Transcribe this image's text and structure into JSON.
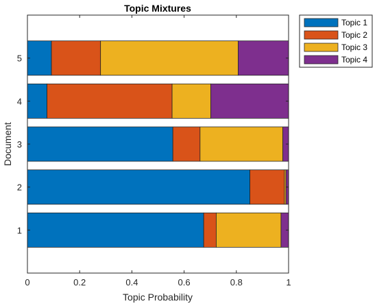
{
  "chart_data": {
    "type": "bar",
    "orientation": "horizontal",
    "stacked": true,
    "title": "Topic Mixtures",
    "xlabel": "Topic Probability",
    "ylabel": "Document",
    "xlim": [
      0,
      1
    ],
    "ylim": [
      0,
      6
    ],
    "x_ticks": [
      "0",
      "0.2",
      "0.4",
      "0.6",
      "0.8",
      "1"
    ],
    "categories": [
      "1",
      "2",
      "3",
      "4",
      "5"
    ],
    "series": [
      {
        "name": "Topic 1",
        "color": "#0072BD",
        "values": [
          0.675,
          0.852,
          0.557,
          0.075,
          0.092
        ]
      },
      {
        "name": "Topic 2",
        "color": "#D95319",
        "values": [
          0.048,
          0.132,
          0.104,
          0.479,
          0.188
        ]
      },
      {
        "name": "Topic 3",
        "color": "#EDB120",
        "values": [
          0.248,
          0.006,
          0.317,
          0.148,
          0.527
        ]
      },
      {
        "name": "Topic 4",
        "color": "#7E2F8E",
        "values": [
          0.029,
          0.01,
          0.022,
          0.298,
          0.193
        ]
      }
    ],
    "legend": "outside-top-right",
    "grid": false
  }
}
